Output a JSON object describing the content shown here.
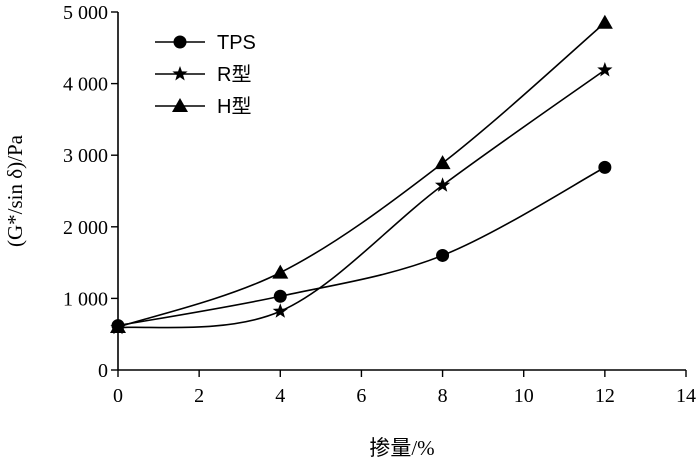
{
  "chart_data": {
    "type": "line",
    "xlabel": "掺量/%",
    "ylabel": "(G*/sin δ)/Pa",
    "xlim": [
      0,
      14
    ],
    "ylim": [
      0,
      5000
    ],
    "xticks": [
      0,
      2,
      4,
      6,
      8,
      10,
      12,
      14
    ],
    "yticks": [
      0,
      1000,
      2000,
      3000,
      4000,
      5000
    ],
    "xtick_labels": [
      "0",
      "2",
      "4",
      "6",
      "8",
      "10",
      "12",
      "14"
    ],
    "ytick_labels": [
      "0",
      "1 000",
      "2 000",
      "3 000",
      "4 000",
      "5 000"
    ],
    "grid": false,
    "legend_position": "top-left",
    "x": [
      0,
      4,
      8,
      12
    ],
    "series": [
      {
        "name": "TPS",
        "marker": "circle",
        "values": [
          620,
          1030,
          1600,
          2830
        ]
      },
      {
        "name": "R型",
        "marker": "star",
        "values": [
          590,
          820,
          2580,
          4190
        ]
      },
      {
        "name": "H型",
        "marker": "triangle",
        "values": [
          600,
          1360,
          2890,
          4850
        ]
      }
    ]
  }
}
